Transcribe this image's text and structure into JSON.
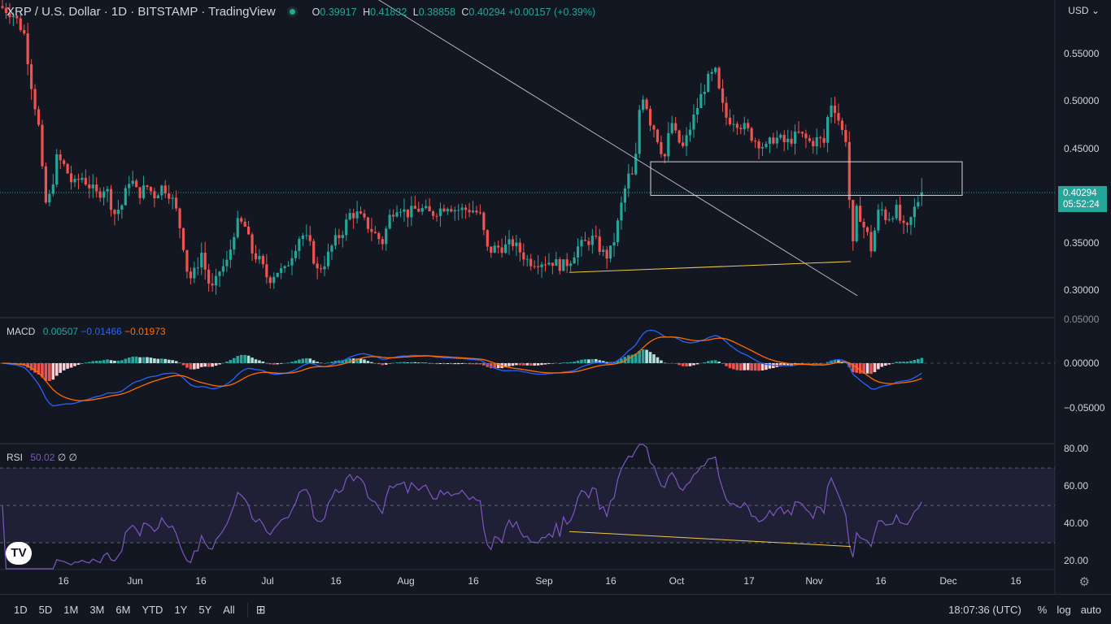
{
  "header": {
    "title": "XRP / U.S. Dollar · 1D · BITSTAMP · TradingView",
    "ohlc": [
      {
        "k": "O",
        "v": "0.39917"
      },
      {
        "k": "H",
        "v": "0.41832"
      },
      {
        "k": "L",
        "v": "0.38858"
      },
      {
        "k": "C",
        "v": "0.40294"
      }
    ],
    "change": "+0.00157 (+0.39%)"
  },
  "currency": "USD",
  "price_axis": [
    "0.55000",
    "0.50000",
    "0.45000",
    "0.40000",
    "0.35000",
    "0.30000"
  ],
  "last_price": {
    "price": "0.40294",
    "countdown": "05:52:24"
  },
  "macd": {
    "name": "MACD",
    "values": [
      "0.00507",
      "−0.01466",
      "−0.01973"
    ],
    "axis": [
      "0.05000",
      "0.00000",
      "−0.05000"
    ]
  },
  "rsi": {
    "name": "RSI",
    "values": [
      "50.02",
      "∅",
      "∅"
    ],
    "axis": [
      "80.00",
      "60.00",
      "40.00",
      "20.00"
    ]
  },
  "time_axis": [
    "16",
    "Jun",
    "16",
    "Jul",
    "16",
    "Aug",
    "16",
    "Sep",
    "16",
    "Oct",
    "17",
    "Nov",
    "16",
    "Dec",
    "16"
  ],
  "bottom_bar": {
    "timeframes": [
      "1D",
      "5D",
      "1M",
      "3M",
      "6M",
      "YTD",
      "1Y",
      "5Y",
      "All"
    ],
    "clock": "18:07:36 (UTC)",
    "percent": "%",
    "log": "log",
    "auto": "auto"
  },
  "colors": {
    "up": "#26a69a",
    "down": "#ef5350",
    "macd": "#2962ff",
    "signal": "#ff6d00",
    "rsi": "#7e57c2",
    "background": "#131722"
  },
  "icons": {
    "logo": "tradingview-logo-icon",
    "gear": "gear-icon",
    "compare": "compare-icon"
  },
  "chart_data": {
    "type": "candlestick",
    "series_name": "XRP / U.S. Dollar",
    "interval": "1D",
    "last": {
      "open": 0.39917,
      "high": 0.41832,
      "low": 0.38858,
      "close": 0.40294
    },
    "close_path": [
      [
        0,
        0.6
      ],
      [
        18,
        0.59
      ],
      [
        30,
        0.57
      ],
      [
        38,
        0.52
      ],
      [
        48,
        0.47
      ],
      [
        55,
        0.39
      ],
      [
        62,
        0.4
      ],
      [
        70,
        0.44
      ],
      [
        80,
        0.43
      ],
      [
        90,
        0.41
      ],
      [
        100,
        0.42
      ],
      [
        110,
        0.41
      ],
      [
        120,
        0.4
      ],
      [
        130,
        0.41
      ],
      [
        140,
        0.38
      ],
      [
        150,
        0.39
      ],
      [
        160,
        0.42
      ],
      [
        170,
        0.4
      ],
      [
        180,
        0.41
      ],
      [
        190,
        0.4
      ],
      [
        200,
        0.41
      ],
      [
        210,
        0.4
      ],
      [
        218,
        0.38
      ],
      [
        225,
        0.35
      ],
      [
        232,
        0.31
      ],
      [
        240,
        0.32
      ],
      [
        248,
        0.34
      ],
      [
        255,
        0.31
      ],
      [
        262,
        0.3
      ],
      [
        270,
        0.32
      ],
      [
        280,
        0.33
      ],
      [
        290,
        0.37
      ],
      [
        300,
        0.37
      ],
      [
        310,
        0.34
      ],
      [
        320,
        0.33
      ],
      [
        330,
        0.31
      ],
      [
        340,
        0.32
      ],
      [
        350,
        0.32
      ],
      [
        360,
        0.34
      ],
      [
        370,
        0.36
      ],
      [
        380,
        0.35
      ],
      [
        390,
        0.32
      ],
      [
        400,
        0.33
      ],
      [
        410,
        0.35
      ],
      [
        420,
        0.36
      ],
      [
        430,
        0.38
      ],
      [
        440,
        0.38
      ],
      [
        450,
        0.37
      ],
      [
        460,
        0.36
      ],
      [
        470,
        0.35
      ],
      [
        480,
        0.38
      ],
      [
        490,
        0.39
      ],
      [
        500,
        0.38
      ],
      [
        510,
        0.385
      ],
      [
        520,
        0.385
      ],
      [
        530,
        0.38
      ],
      [
        540,
        0.385
      ],
      [
        550,
        0.39
      ],
      [
        560,
        0.385
      ],
      [
        570,
        0.385
      ],
      [
        580,
        0.385
      ],
      [
        590,
        0.38
      ],
      [
        600,
        0.34
      ],
      [
        610,
        0.345
      ],
      [
        620,
        0.345
      ],
      [
        630,
        0.35
      ],
      [
        640,
        0.34
      ],
      [
        650,
        0.33
      ],
      [
        660,
        0.33
      ],
      [
        670,
        0.33
      ],
      [
        680,
        0.33
      ],
      [
        690,
        0.325
      ],
      [
        700,
        0.33
      ],
      [
        710,
        0.345
      ],
      [
        720,
        0.35
      ],
      [
        730,
        0.355
      ],
      [
        740,
        0.34
      ],
      [
        748,
        0.335
      ],
      [
        756,
        0.355
      ],
      [
        764,
        0.39
      ],
      [
        772,
        0.42
      ],
      [
        780,
        0.42
      ],
      [
        786,
        0.49
      ],
      [
        792,
        0.51
      ],
      [
        798,
        0.48
      ],
      [
        805,
        0.47
      ],
      [
        812,
        0.45
      ],
      [
        818,
        0.44
      ],
      [
        825,
        0.48
      ],
      [
        832,
        0.46
      ],
      [
        840,
        0.45
      ],
      [
        848,
        0.47
      ],
      [
        856,
        0.49
      ],
      [
        864,
        0.51
      ],
      [
        872,
        0.525
      ],
      [
        880,
        0.53
      ],
      [
        886,
        0.5
      ],
      [
        894,
        0.48
      ],
      [
        902,
        0.48
      ],
      [
        910,
        0.475
      ],
      [
        918,
        0.47
      ],
      [
        926,
        0.46
      ],
      [
        934,
        0.455
      ],
      [
        942,
        0.45
      ],
      [
        950,
        0.46
      ],
      [
        958,
        0.46
      ],
      [
        966,
        0.455
      ],
      [
        974,
        0.46
      ],
      [
        982,
        0.465
      ],
      [
        990,
        0.46
      ],
      [
        998,
        0.455
      ],
      [
        1006,
        0.46
      ],
      [
        1014,
        0.455
      ],
      [
        1020,
        0.5
      ],
      [
        1028,
        0.49
      ],
      [
        1034,
        0.47
      ],
      [
        1040,
        0.46
      ],
      [
        1044,
        0.4
      ],
      [
        1048,
        0.34
      ],
      [
        1054,
        0.39
      ],
      [
        1060,
        0.37
      ],
      [
        1066,
        0.36
      ],
      [
        1072,
        0.34
      ],
      [
        1078,
        0.38
      ],
      [
        1084,
        0.385
      ],
      [
        1090,
        0.375
      ],
      [
        1096,
        0.38
      ],
      [
        1102,
        0.385
      ],
      [
        1108,
        0.37
      ],
      [
        1114,
        0.36
      ],
      [
        1120,
        0.375
      ],
      [
        1126,
        0.39
      ],
      [
        1134,
        0.403
      ]
    ],
    "annotations": [
      {
        "type": "trendline",
        "color": "#b2b5be",
        "from": [
          450,
          0.615
        ],
        "to": [
          1054,
          0.294
        ]
      },
      {
        "type": "trendline",
        "color": "#f0c845",
        "from": [
          700,
          0.3185
        ],
        "to": [
          1046,
          0.33
        ]
      },
      {
        "type": "rectangle",
        "color": "#d1d4dc",
        "x": [
          800,
          1183
        ],
        "y": [
          0.4,
          0.4355
        ]
      }
    ]
  }
}
